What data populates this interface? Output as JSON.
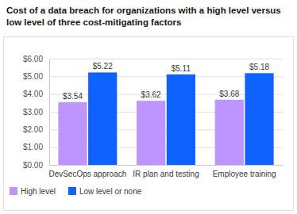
{
  "chart_data": {
    "type": "bar",
    "title": "Cost of a data breach for organizations with a high level versus low level of three cost-mitigating factors",
    "categories": [
      "DevSecOps approach",
      "IR plan and testing",
      "Employee training"
    ],
    "series": [
      {
        "name": "High level",
        "color": "#be95ff",
        "values": [
          3.54,
          3.62,
          3.68
        ],
        "value_labels": [
          "$3.54",
          "$3.62",
          "$3.68"
        ]
      },
      {
        "name": "Low level or none",
        "color": "#0f62fe",
        "values": [
          5.22,
          5.11,
          5.18
        ],
        "value_labels": [
          "$5.22",
          "$5.11",
          "$5.18"
        ]
      }
    ],
    "ylim": [
      0,
      6
    ],
    "yticks": [
      {
        "value": 0,
        "label": "$0.00"
      },
      {
        "value": 1,
        "label": "$1.00"
      },
      {
        "value": 2,
        "label": "$2.00"
      },
      {
        "value": 3,
        "label": "$3.00"
      },
      {
        "value": 4,
        "label": "$4.00"
      },
      {
        "value": 5,
        "label": "$5.00"
      },
      {
        "value": 6,
        "label": "$6.00"
      }
    ],
    "grid": true,
    "data_labels": true,
    "legend": "bottom"
  }
}
